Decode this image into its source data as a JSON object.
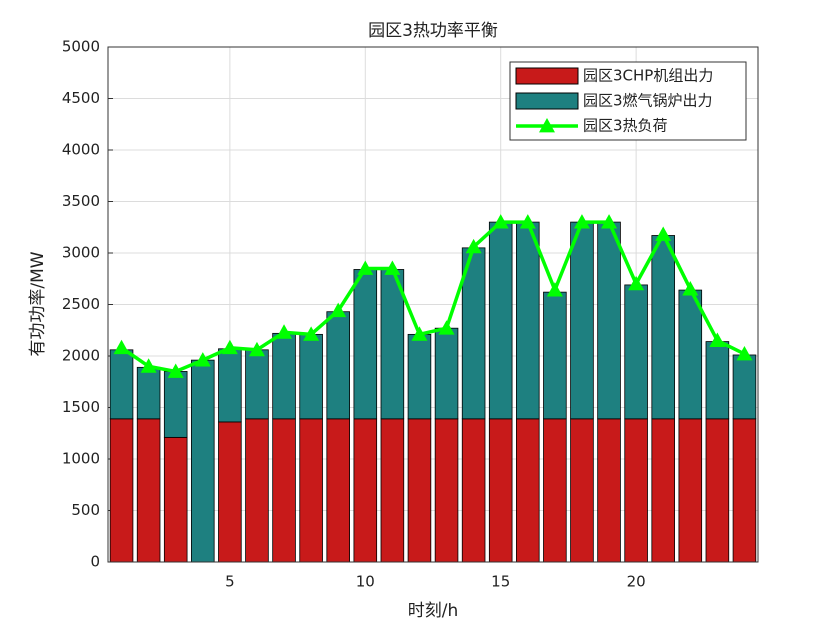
{
  "chart_data": {
    "type": "bar",
    "stacked": true,
    "title": "园区3热功率平衡",
    "xlabel": "时刻/h",
    "ylabel": "有功功率/MW",
    "x": [
      1,
      2,
      3,
      4,
      5,
      6,
      7,
      8,
      9,
      10,
      11,
      12,
      13,
      14,
      15,
      16,
      17,
      18,
      19,
      20,
      21,
      22,
      23,
      24
    ],
    "series": [
      {
        "name": "园区3CHP机组出力",
        "type": "bar",
        "color": "#c81a1a",
        "values": [
          1390,
          1390,
          1210,
          0,
          1360,
          1390,
          1390,
          1390,
          1390,
          1390,
          1390,
          1390,
          1390,
          1390,
          1390,
          1390,
          1390,
          1390,
          1390,
          1390,
          1390,
          1390,
          1390,
          1390
        ]
      },
      {
        "name": "园区3燃气锅炉出力",
        "type": "bar",
        "color": "#1e8080",
        "values": [
          670,
          500,
          640,
          1960,
          710,
          670,
          830,
          820,
          1040,
          1450,
          1450,
          820,
          880,
          1660,
          1910,
          1910,
          1230,
          1910,
          1910,
          1300,
          1780,
          1250,
          750,
          620
        ]
      },
      {
        "name": "园区3热负荷",
        "type": "line",
        "color": "#00ff00",
        "values": [
          2080,
          1900,
          1850,
          1960,
          2080,
          2060,
          2230,
          2210,
          2440,
          2850,
          2850,
          2210,
          2270,
          3060,
          3300,
          3300,
          2640,
          3300,
          3300,
          2700,
          3180,
          2650,
          2150,
          2020
        ]
      }
    ],
    "xlim": [
      0.5,
      24.5
    ],
    "xticks": [
      5,
      10,
      15,
      20
    ],
    "ylim": [
      0,
      5000
    ],
    "yticks": [
      0,
      500,
      1000,
      1500,
      2000,
      2500,
      3000,
      3500,
      4000,
      4500,
      5000
    ],
    "grid": true,
    "legend": "upper-right"
  }
}
